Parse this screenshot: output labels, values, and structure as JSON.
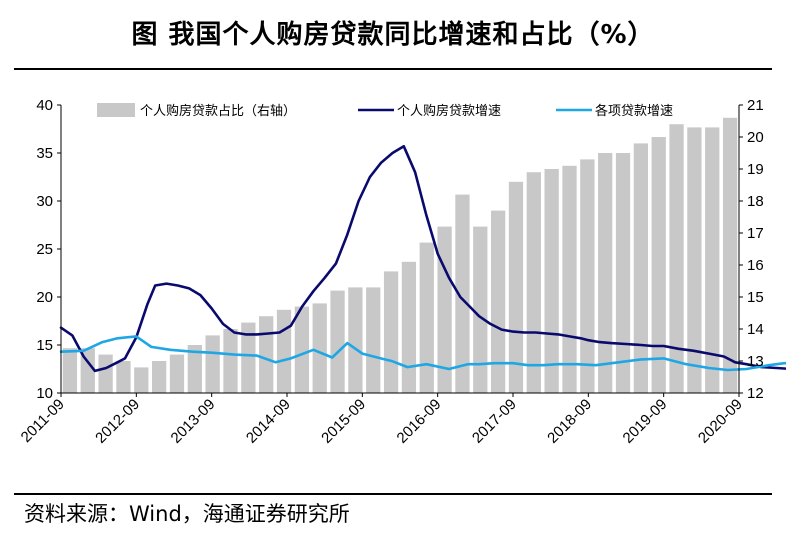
{
  "header": {
    "title": "图  我国个人购房贷款同比增速和占比（%）"
  },
  "footer": {
    "source": "资料来源：Wind，海通证券研究所"
  },
  "chart_data": {
    "type": "bar+line",
    "title": "我国个人购房贷款同比增速和占比（%）",
    "x_ticks": [
      "2011-09",
      "2012-09",
      "2013-09",
      "2014-09",
      "2015-09",
      "2016-09",
      "2017-09",
      "2018-09",
      "2019-09",
      "2020-09"
    ],
    "y_left": {
      "range": [
        10,
        40
      ],
      "ticks": [
        "10",
        "15",
        "20",
        "25",
        "30",
        "35",
        "40"
      ]
    },
    "y_right": {
      "range": [
        12,
        21
      ],
      "ticks": [
        "12",
        "13",
        "14",
        "15",
        "16",
        "17",
        "18",
        "19",
        "20",
        "21"
      ]
    },
    "legend": [
      "个人购房贷款占比（右轴）",
      "个人购房贷款增速",
      "各项贷款增速"
    ],
    "colors": {
      "bars": "#c8c8c8",
      "housing_growth": "#0a0a6e",
      "total_growth": "#1ea7e4"
    },
    "bars": {
      "name": "个人购房贷款占比（右轴）",
      "axis": "right",
      "values": [
        13.4,
        13.4,
        13.2,
        13.0,
        12.8,
        13.0,
        13.2,
        13.5,
        13.8,
        14.0,
        14.2,
        14.4,
        14.6,
        14.7,
        14.8,
        15.2,
        15.3,
        15.3,
        15.8,
        16.1,
        16.7,
        17.2,
        18.2,
        17.2,
        17.7,
        18.6,
        18.9,
        19.0,
        19.1,
        19.3,
        19.5,
        19.5,
        19.8,
        20.0,
        20.4,
        20.3,
        20.3,
        20.6
      ]
    },
    "lines": [
      {
        "name": "个人购房贷款增速",
        "axis": "left",
        "x": [
          0,
          0.15,
          0.3,
          0.45,
          0.6,
          0.75,
          0.85,
          1.0,
          1.15,
          1.25,
          1.4,
          1.55,
          1.7,
          1.85,
          2.0,
          2.15,
          2.3,
          2.45,
          2.6,
          2.75,
          2.9,
          3.05,
          3.2,
          3.35,
          3.5,
          3.65,
          3.8,
          3.95,
          4.1,
          4.25,
          4.4,
          4.55,
          4.7,
          4.85,
          5.0,
          5.15,
          5.3,
          5.45,
          5.55,
          5.7,
          5.85,
          6.0,
          6.15,
          6.3,
          6.45,
          6.6,
          6.75,
          6.9,
          7.0,
          7.15,
          7.3,
          7.5,
          7.7,
          7.85,
          8.0,
          8.2,
          8.4,
          8.6,
          8.8,
          8.95,
          9.1,
          9.3,
          9.5,
          9.7,
          9.95,
          10.0
        ],
        "values": [
          16.8,
          16.0,
          13.8,
          12.3,
          12.6,
          13.2,
          13.6,
          15.8,
          19.3,
          21.2,
          21.4,
          21.2,
          20.9,
          20.2,
          18.8,
          17.2,
          16.3,
          16.1,
          16.1,
          16.2,
          16.3,
          17.0,
          19.0,
          20.6,
          22.0,
          23.5,
          26.5,
          30.0,
          32.5,
          34.0,
          35.0,
          35.7,
          33.0,
          28.5,
          24.5,
          22.0,
          20.0,
          18.8,
          18.0,
          17.2,
          16.6,
          16.4,
          16.3,
          16.3,
          16.2,
          16.1,
          15.9,
          15.7,
          15.5,
          15.3,
          15.2,
          15.1,
          15.0,
          14.9,
          14.9,
          14.6,
          14.4,
          14.1,
          13.8,
          13.2,
          13.0,
          12.7,
          12.6,
          12.5,
          12.4,
          12.4
        ]
      },
      {
        "name": "各项贷款增速",
        "axis": "left",
        "x": [
          0,
          0.3,
          0.55,
          0.75,
          1.0,
          1.2,
          1.45,
          1.75,
          2.0,
          2.3,
          2.6,
          2.85,
          3.05,
          3.35,
          3.6,
          3.8,
          4.0,
          4.2,
          4.4,
          4.6,
          4.85,
          5.15,
          5.4,
          5.55,
          5.75,
          6.0,
          6.2,
          6.4,
          6.6,
          6.85,
          7.1,
          7.4,
          7.7,
          8.0,
          8.3,
          8.6,
          8.85,
          9.1,
          9.4,
          9.6,
          9.75,
          9.9,
          10.0
        ],
        "values": [
          14.3,
          14.4,
          15.3,
          15.7,
          15.9,
          14.8,
          14.5,
          14.3,
          14.2,
          14.0,
          13.9,
          13.2,
          13.6,
          14.5,
          13.7,
          15.2,
          14.1,
          13.7,
          13.3,
          12.7,
          13.0,
          12.5,
          13.0,
          13.0,
          13.1,
          13.1,
          12.9,
          12.9,
          13.0,
          13.0,
          12.9,
          13.2,
          13.5,
          13.6,
          13.0,
          12.6,
          12.4,
          12.5,
          12.9,
          13.1,
          13.1,
          12.9,
          12.9
        ]
      }
    ]
  }
}
